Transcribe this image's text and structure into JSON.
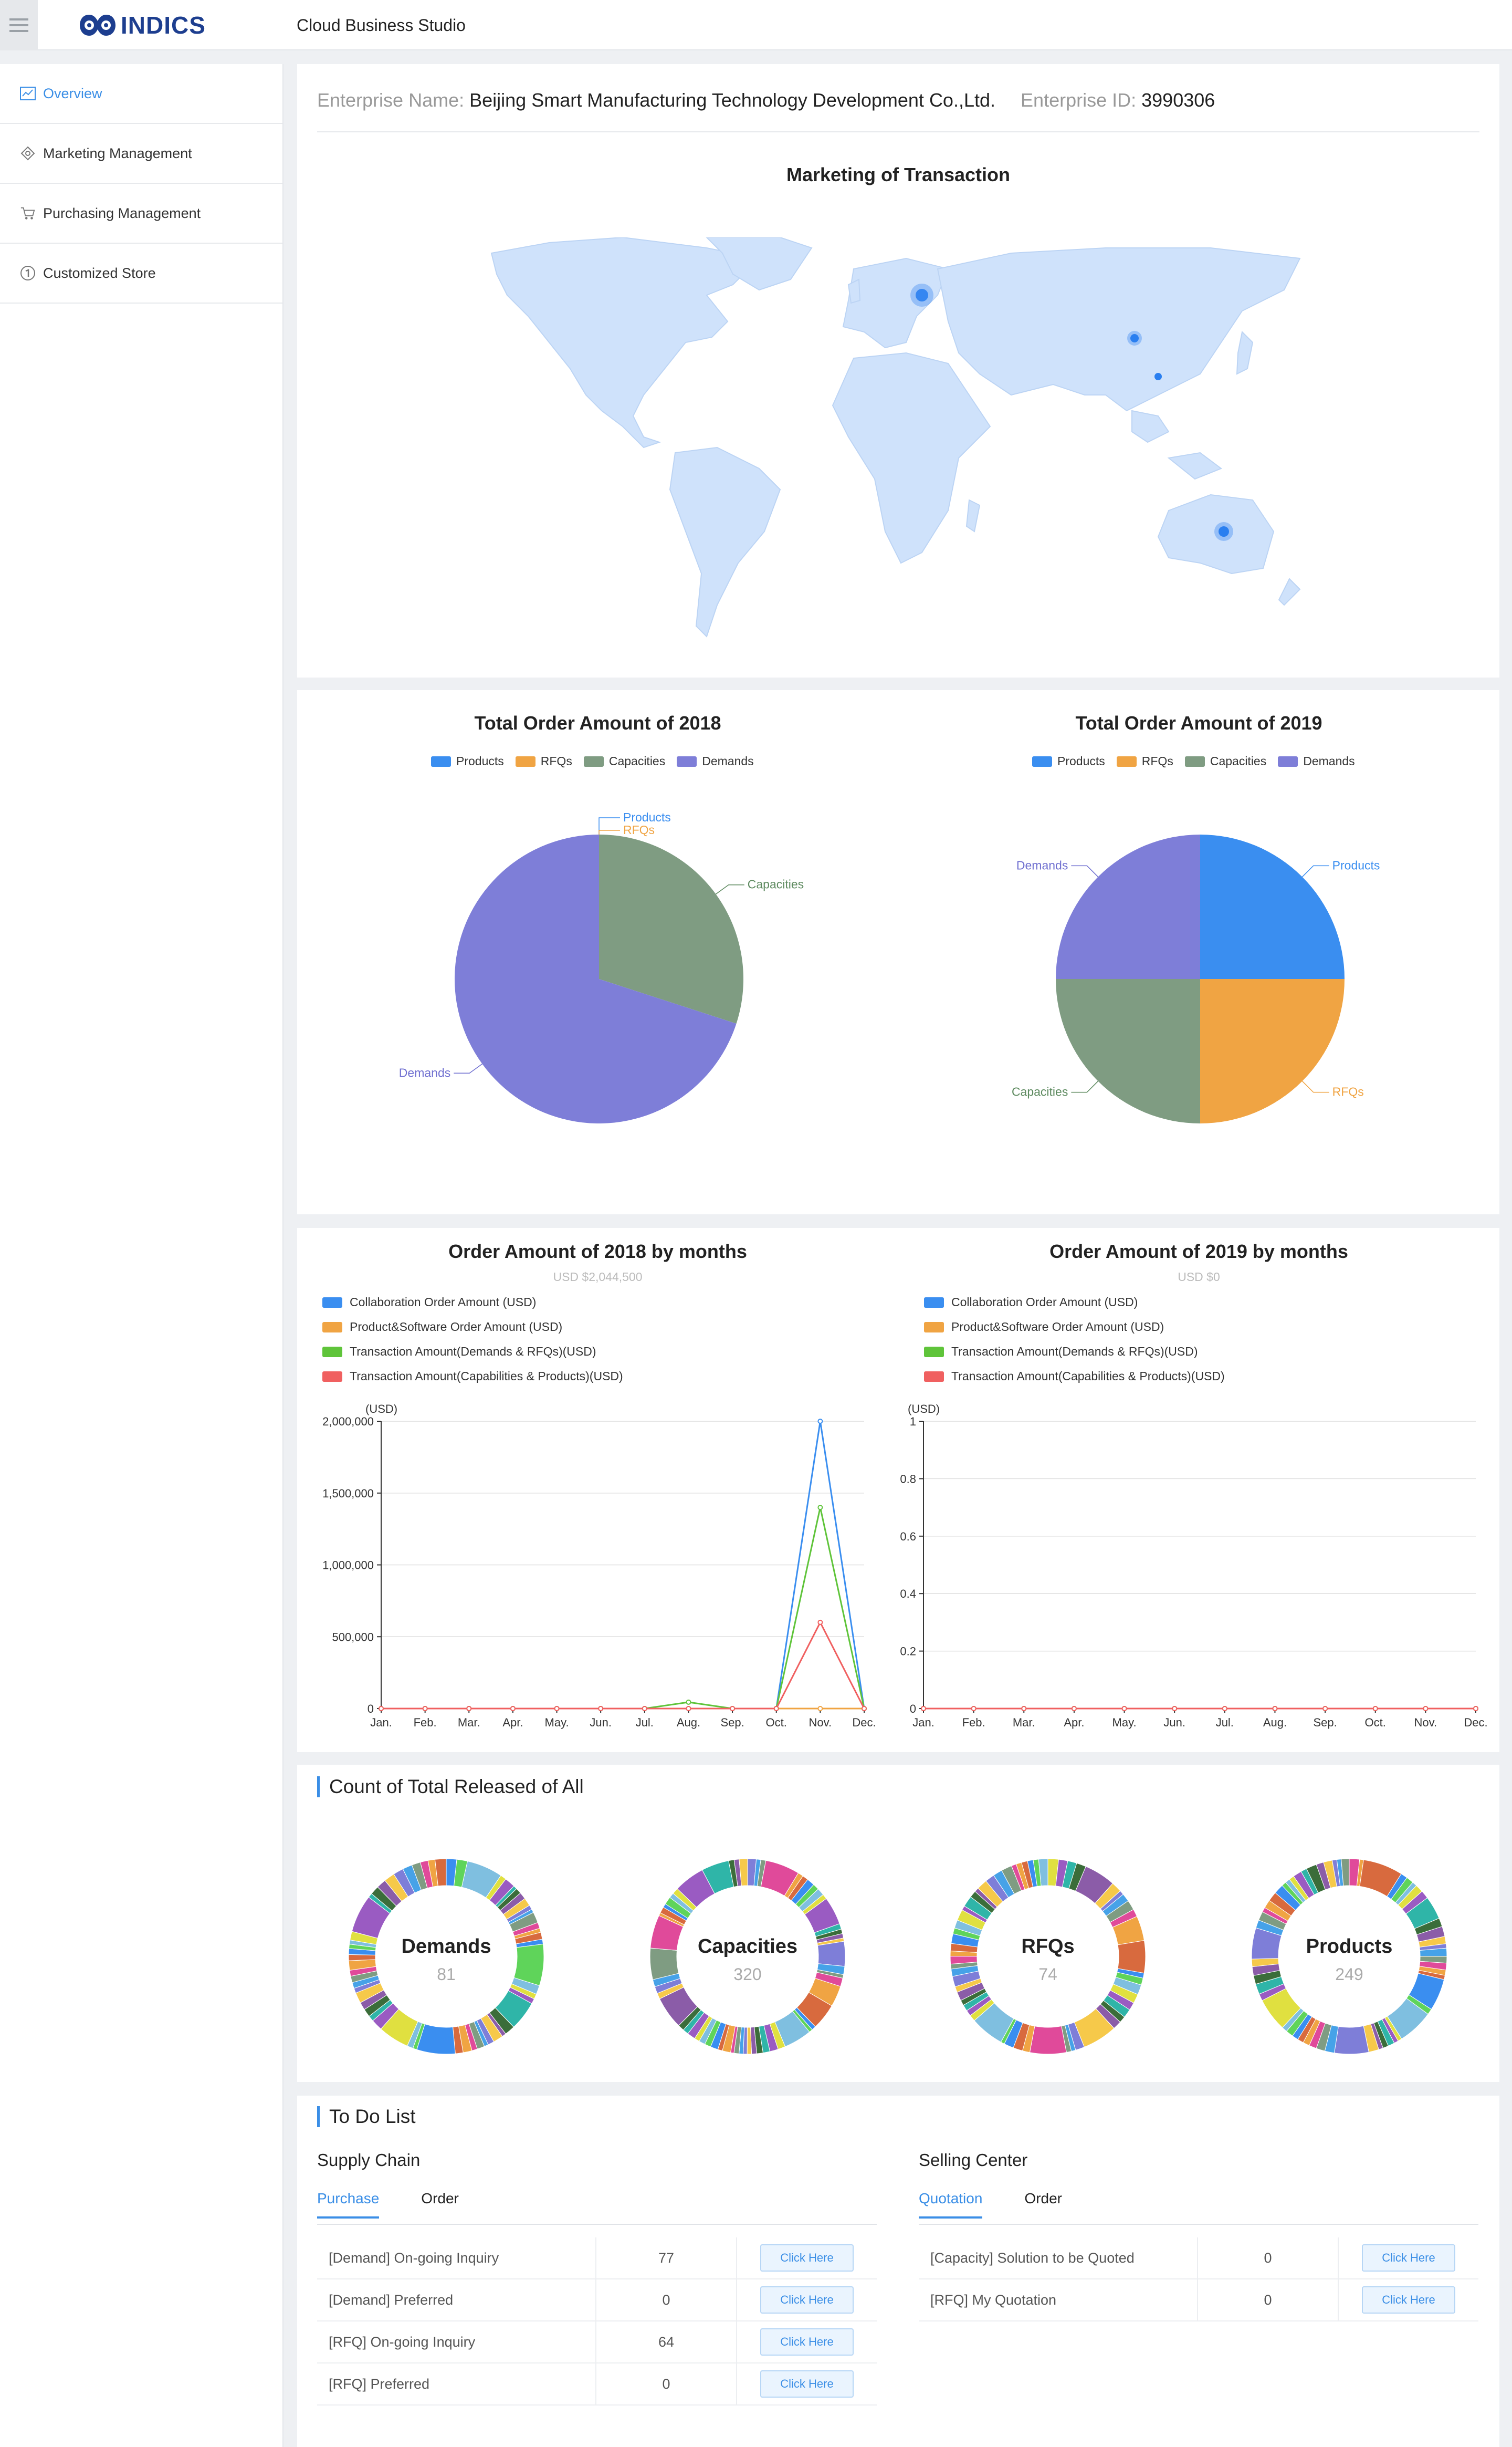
{
  "header": {
    "logo_text": "INDICS",
    "app_title": "Cloud Business Studio"
  },
  "sidebar": {
    "items": [
      {
        "label": "Overview",
        "icon": "chart-icon",
        "active": true
      },
      {
        "label": "Marketing Management",
        "icon": "marketing-icon",
        "active": false
      },
      {
        "label": "Purchasing Management",
        "icon": "cart-icon",
        "active": false
      },
      {
        "label": "Customized Store",
        "icon": "store-icon",
        "active": false
      }
    ]
  },
  "enterprise": {
    "name_label": "Enterprise Name:",
    "name": "Beijing Smart Manufacturing Technology Development Co.,Ltd.",
    "id_label": "Enterprise ID:",
    "id": "3990306"
  },
  "map": {
    "title": "Marketing of Transaction",
    "fill_color": "#cfe2fb",
    "marker_color": "#2a7ff0",
    "markers": [
      "Europe",
      "China",
      "East China coast",
      "Australia"
    ]
  },
  "pies": {
    "legend": [
      "Products",
      "RFQs",
      "Capacities",
      "Demands"
    ],
    "colors": [
      "#3a8ef0",
      "#f0a443",
      "#7f9c82",
      "#7e7ed8"
    ],
    "label_colors": [
      "#3a8ef0",
      "#f0a443",
      "#5d8a5f",
      "#6f6fd0"
    ],
    "pie2018": {
      "title": "Total Order Amount of 2018",
      "values": [
        0,
        0,
        30,
        70
      ]
    },
    "pie2019": {
      "title": "Total Order Amount of 2019",
      "values": [
        25,
        25,
        25,
        25
      ]
    }
  },
  "monthly": {
    "legend": [
      "Collaboration Order Amount (USD)",
      "Product&Software Order Amount (USD)",
      "Transaction Amount(Demands & RFQs)(USD)",
      "Transaction Amount(Capabilities & Products)(USD)"
    ],
    "colors": [
      "#3a8ef0",
      "#f0a443",
      "#5fc43a",
      "#f06060"
    ],
    "unit": "(USD)",
    "months": [
      "Jan.",
      "Feb.",
      "Mar.",
      "Apr.",
      "May.",
      "Jun.",
      "Jul.",
      "Aug.",
      "Sep.",
      "Oct.",
      "Nov.",
      "Dec."
    ],
    "m2018": {
      "title": "Order Amount of 2018 by months",
      "subtitle": "USD $2,044,500",
      "yticks": [
        "0",
        "500,000",
        "1,000,000",
        "1,500,000",
        "2,000,000"
      ]
    },
    "m2019": {
      "title": "Order Amount of 2019 by months",
      "subtitle": "USD $0",
      "yticks": [
        "0",
        "0.2",
        "0.4",
        "0.6",
        "0.8",
        "1"
      ]
    }
  },
  "chart_data": [
    {
      "type": "pie",
      "title": "Total Order Amount of 2018",
      "categories": [
        "Products",
        "RFQs",
        "Capacities",
        "Demands"
      ],
      "values": [
        0,
        0,
        30,
        70
      ]
    },
    {
      "type": "pie",
      "title": "Total Order Amount of 2019",
      "categories": [
        "Products",
        "RFQs",
        "Capacities",
        "Demands"
      ],
      "values": [
        25,
        25,
        25,
        25
      ]
    },
    {
      "type": "line",
      "title": "Order Amount of 2018 by months",
      "subtitle": "USD $2,044,500",
      "ylabel": "(USD)",
      "ylim": [
        0,
        2000000
      ],
      "x": [
        "Jan.",
        "Feb.",
        "Mar.",
        "Apr.",
        "May.",
        "Jun.",
        "Jul.",
        "Aug.",
        "Sep.",
        "Oct.",
        "Nov.",
        "Dec."
      ],
      "series": [
        {
          "name": "Collaboration Order Amount (USD)",
          "values": [
            0,
            0,
            0,
            0,
            0,
            0,
            0,
            0,
            0,
            0,
            2000000,
            0
          ]
        },
        {
          "name": "Product&Software Order Amount (USD)",
          "values": [
            0,
            0,
            0,
            0,
            0,
            0,
            0,
            0,
            0,
            0,
            0,
            0
          ]
        },
        {
          "name": "Transaction Amount(Demands & RFQs)(USD)",
          "values": [
            0,
            0,
            0,
            0,
            0,
            0,
            0,
            44500,
            0,
            0,
            1400000,
            0
          ]
        },
        {
          "name": "Transaction Amount(Capabilities & Products)(USD)",
          "values": [
            0,
            0,
            0,
            0,
            0,
            0,
            0,
            0,
            0,
            0,
            600000,
            0
          ]
        }
      ]
    },
    {
      "type": "line",
      "title": "Order Amount of 2019 by months",
      "subtitle": "USD $0",
      "ylabel": "(USD)",
      "ylim": [
        0,
        1
      ],
      "x": [
        "Jan.",
        "Feb.",
        "Mar.",
        "Apr.",
        "May.",
        "Jun.",
        "Jul.",
        "Aug.",
        "Sep.",
        "Oct.",
        "Nov.",
        "Dec."
      ],
      "series": [
        {
          "name": "Collaboration Order Amount (USD)",
          "values": [
            0,
            0,
            0,
            0,
            0,
            0,
            0,
            0,
            0,
            0,
            0,
            0
          ]
        },
        {
          "name": "Product&Software Order Amount (USD)",
          "values": [
            0,
            0,
            0,
            0,
            0,
            0,
            0,
            0,
            0,
            0,
            0,
            0
          ]
        },
        {
          "name": "Transaction Amount(Demands & RFQs)(USD)",
          "values": [
            0,
            0,
            0,
            0,
            0,
            0,
            0,
            0,
            0,
            0,
            0,
            0
          ]
        },
        {
          "name": "Transaction Amount(Capabilities & Products)(USD)",
          "values": [
            0,
            0,
            0,
            0,
            0,
            0,
            0,
            0,
            0,
            0,
            0,
            0
          ]
        }
      ]
    }
  ],
  "released": {
    "title": "Count of Total Released of All",
    "palette": [
      "#3a8ef0",
      "#f0a443",
      "#7f9c82",
      "#7e7ed8",
      "#8b5ca8",
      "#2fb5a8",
      "#e0e040",
      "#5fd45a",
      "#d86a3e",
      "#e04a9a",
      "#46a2e8",
      "#f6c94a",
      "#3b6d3a",
      "#9a5bc2",
      "#7fbfe0"
    ],
    "items": [
      {
        "name": "Demands",
        "count": "81",
        "n": 81
      },
      {
        "name": "Capacities",
        "count": "320",
        "n": 320
      },
      {
        "name": "RFQs",
        "count": "74",
        "n": 74
      },
      {
        "name": "Products",
        "count": "249",
        "n": 249
      }
    ]
  },
  "todo": {
    "title": "To Do List",
    "supply": {
      "title": "Supply Chain",
      "tabs": [
        "Purchase",
        "Order"
      ],
      "rows": [
        {
          "label": "[Demand] On-going Inquiry",
          "count": "77",
          "action": "Click Here"
        },
        {
          "label": "[Demand] Preferred",
          "count": "0",
          "action": "Click Here"
        },
        {
          "label": "[RFQ] On-going Inquiry",
          "count": "64",
          "action": "Click Here"
        },
        {
          "label": "[RFQ] Preferred",
          "count": "0",
          "action": "Click Here"
        }
      ]
    },
    "selling": {
      "title": "Selling Center",
      "tabs": [
        "Quotation",
        "Order"
      ],
      "rows": [
        {
          "label": "[Capacity] Solution to be Quoted",
          "count": "0",
          "action": "Click Here"
        },
        {
          "label": "[RFQ] My Quotation",
          "count": "0",
          "action": "Click Here"
        }
      ]
    }
  }
}
